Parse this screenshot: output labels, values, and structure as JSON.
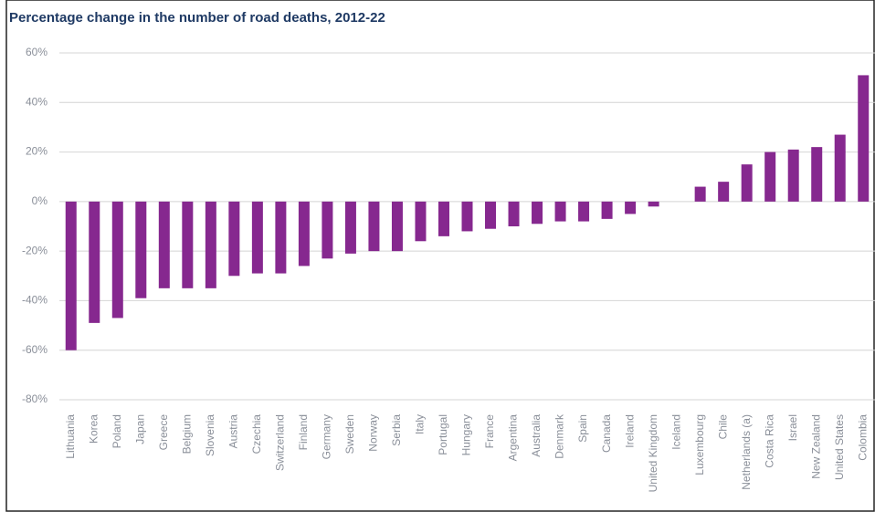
{
  "chart_data": {
    "type": "bar",
    "title": "Percentage change in the number of road deaths, 2012-22",
    "categories": [
      "Lithuania",
      "Korea",
      "Poland",
      "Japan",
      "Greece",
      "Belgium",
      "Slovenia",
      "Austria",
      "Czechia",
      "Switzerland",
      "Finland",
      "Germany",
      "Sweden",
      "Norway",
      "Serbia",
      "Italy",
      "Portugal",
      "Hungary",
      "France",
      "Argentina",
      "Australia",
      "Denmark",
      "Spain",
      "Canada",
      "Ireland",
      "United Kingdom",
      "Iceland",
      "Luxembourg",
      "Chile",
      "Netherlands (a)",
      "Costa Rica",
      "Israel",
      "New Zealand",
      "United States",
      "Colombia"
    ],
    "values": [
      -60,
      -49,
      -47,
      -39,
      -35,
      -35,
      -35,
      -30,
      -29,
      -29,
      -26,
      -23,
      -21,
      -20,
      -20,
      -16,
      -14,
      -12,
      -11,
      -10,
      -9,
      -8,
      -8,
      -7,
      -5,
      -2,
      0,
      6,
      8,
      15,
      20,
      21,
      22,
      27,
      51
    ],
    "color": "#86288f",
    "ylim": [
      -80,
      60
    ],
    "yticks": [
      {
        "value": -80,
        "label": "-80%"
      },
      {
        "value": -60,
        "label": "-60%"
      },
      {
        "value": -40,
        "label": "-40%"
      },
      {
        "value": -20,
        "label": "-20%"
      },
      {
        "value": 0,
        "label": "0%"
      },
      {
        "value": 20,
        "label": "20%"
      },
      {
        "value": 40,
        "label": "40%"
      },
      {
        "value": 60,
        "label": "60%"
      }
    ],
    "grid": true
  }
}
